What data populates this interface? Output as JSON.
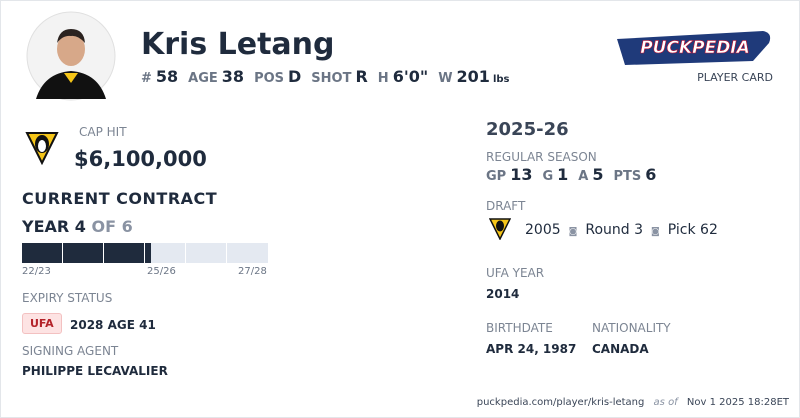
{
  "header": {
    "name": "Kris Letang",
    "stats": [
      {
        "label": "#",
        "value": 58
      },
      {
        "label": "AGE",
        "value": 38
      },
      {
        "label": "POS",
        "value": "D"
      },
      {
        "label": "SHOT",
        "value": "R"
      },
      {
        "label": "H",
        "value": "6'0\""
      },
      {
        "label": "W",
        "value": 201,
        "unit": "lbs"
      }
    ],
    "brand": "PUCKPEDIA",
    "card_label": "PLAYER CARD"
  },
  "contract": {
    "cap_hit_label": "CAP HIT",
    "cap_hit": "$6,100,000",
    "title": "CURRENT CONTRACT",
    "year": "YEAR 4",
    "of_total": "OF 6",
    "bar_labels": [
      "22/23",
      "25/26",
      "27/28"
    ],
    "expiry_label": "EXPIRY STATUS",
    "expiry_badge": "UFA",
    "expiry_detail": "2028 AGE 41",
    "agent_label": "SIGNING AGENT",
    "agent": "PHILIPPE LECAVALIER"
  },
  "season": {
    "title": "2025-26",
    "subtitle": "REGULAR SEASON",
    "stats": [
      {
        "label": "GP",
        "value": 13
      },
      {
        "label": "G",
        "value": 1
      },
      {
        "label": "A",
        "value": 5
      },
      {
        "label": "PTS",
        "value": 6
      }
    ],
    "draft_label": "DRAFT",
    "draft": [
      "2005",
      "Round 3",
      "Pick 62"
    ],
    "ufa_year_label": "UFA YEAR",
    "ufa_year": "2014",
    "birthdate_label": "BIRTHDATE",
    "birthdate": "APR 24, 1987",
    "nationality_label": "NATIONALITY",
    "nationality": "CANADA"
  },
  "footer": {
    "url": "puckpedia.com/player/kris-letang",
    "as_of": "as of",
    "timestamp": "Nov 1 2025 18:28ET"
  }
}
